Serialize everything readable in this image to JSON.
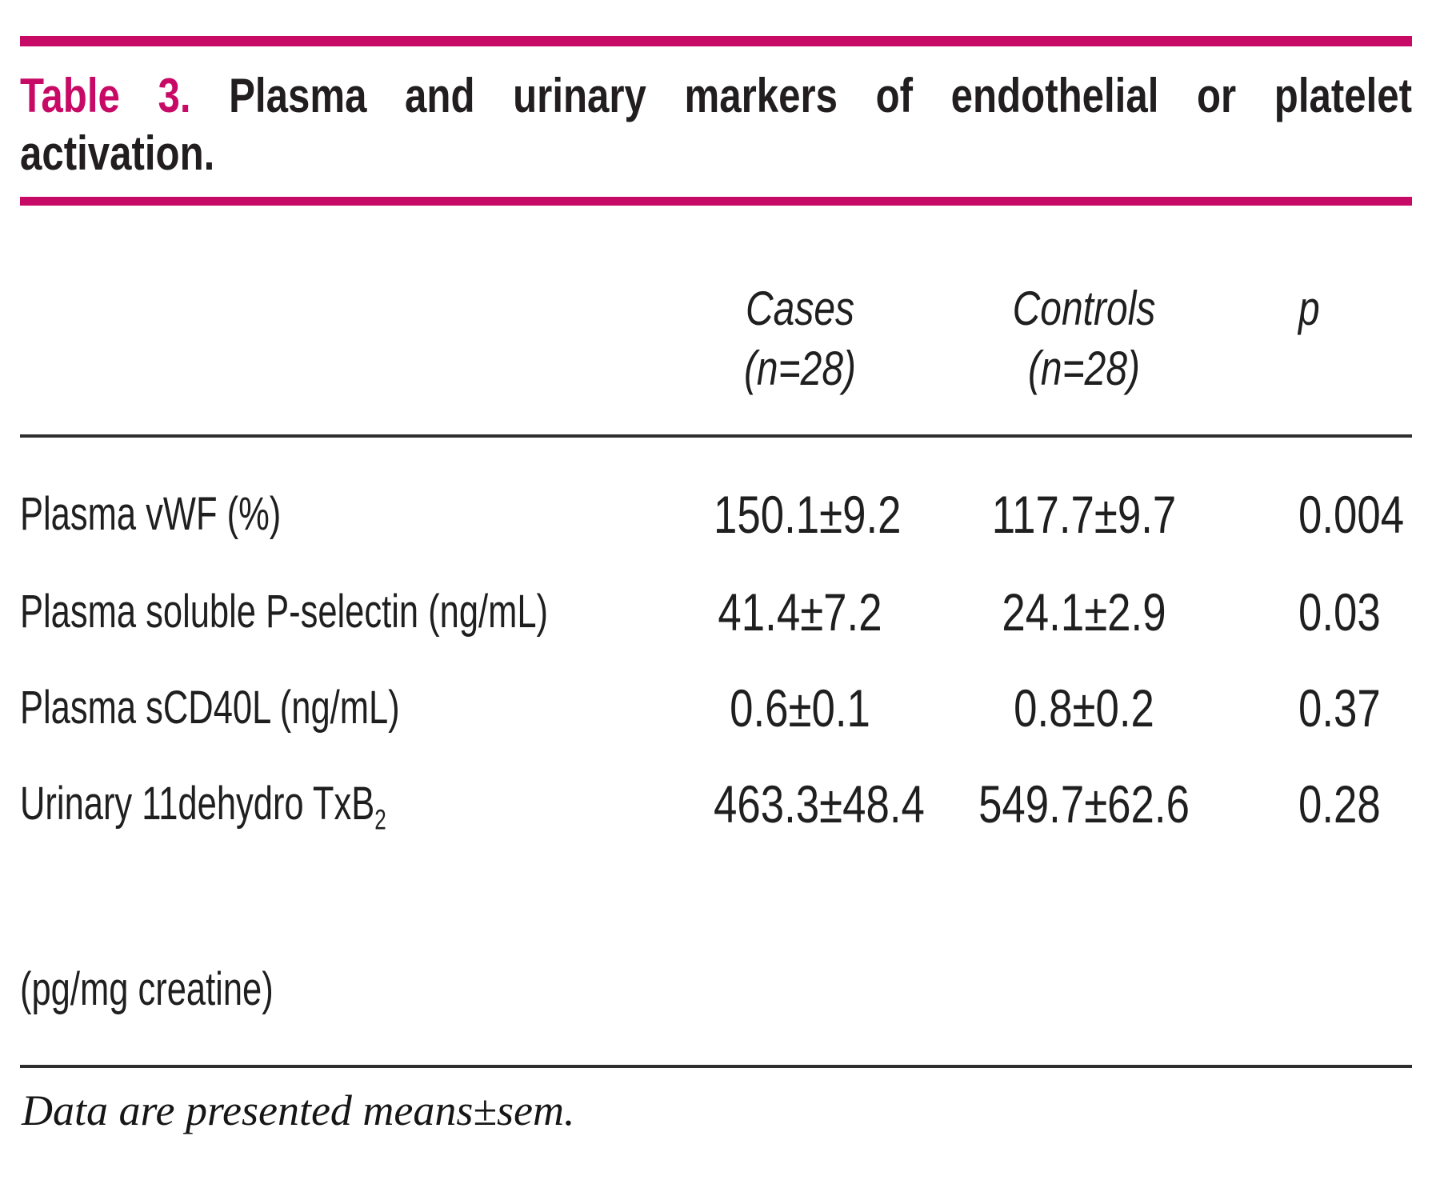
{
  "colors": {
    "accent": "#c80a67",
    "text": "#1f1f1f",
    "rule": "#2e2e2e"
  },
  "title": {
    "prefix": "Table 3.",
    "line1_rest": "Plasma and urinary markers of endothelial or platelet",
    "line2": "activation."
  },
  "columns": {
    "cases_line1": "Cases",
    "cases_line2": "(n=28)",
    "controls_line1": "Controls",
    "controls_line2": "(n=28)",
    "p": "p"
  },
  "rows": [
    {
      "label": "Plasma vWF (%)",
      "cases": "150.1±9.2",
      "controls": "117.7±9.7",
      "p": "0.004"
    },
    {
      "label": "Plasma soluble P-selectin (ng/mL)",
      "cases": "41.4±7.2",
      "controls": "24.1±2.9",
      "p": "0.03"
    },
    {
      "label": "Plasma sCD40L (ng/mL)",
      "cases": "0.6±0.1",
      "controls": "0.8±0.2",
      "p": "0.37"
    },
    {
      "label": "Urinary 11dehydro TxB",
      "label_subscript": "2",
      "label_continuation": "(pg/mg creatine)",
      "cases": "463.3±48.4",
      "controls": "549.7±62.6",
      "p": "0.28"
    }
  ],
  "footnote": "Data are presented means±sem."
}
